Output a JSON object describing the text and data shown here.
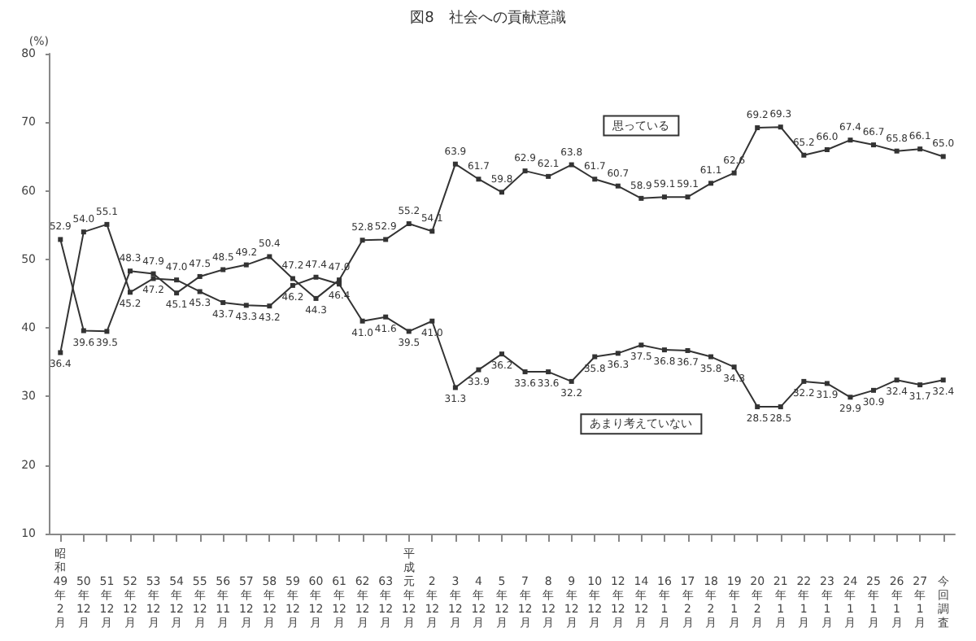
{
  "chart_data": {
    "type": "line",
    "title": "図8　社会への貢献意識",
    "ylabel": "(%)",
    "categories": [
      "昭和49年2月",
      "50年12月",
      "51年12月",
      "52年12月",
      "53年12月",
      "54年12月",
      "55年12月",
      "56年11月",
      "57年12月",
      "58年12月",
      "59年12月",
      "60年12月",
      "61年12月",
      "62年12月",
      "63年12月",
      "平成元年12月",
      "2年12月",
      "3年12月",
      "4年12月",
      "5年12月",
      "7年12月",
      "8年12月",
      "9年12月",
      "10年12月",
      "12年12月",
      "14年12月",
      "16年1月",
      "17年2月",
      "18年2月",
      "19年1月",
      "20年2月",
      "21年1月",
      "22年1月",
      "23年1月",
      "24年1月",
      "25年1月",
      "26年1月",
      "27年1月",
      "今回調査"
    ],
    "series": [
      {
        "name": "思っている",
        "color": "#333333",
        "values": [
          52.9,
          39.6,
          39.5,
          48.3,
          47.9,
          45.1,
          47.5,
          48.5,
          49.2,
          50.4,
          47.2,
          44.3,
          47.0,
          52.8,
          52.9,
          55.2,
          54.1,
          63.9,
          61.7,
          59.8,
          62.9,
          62.1,
          63.8,
          61.7,
          60.7,
          58.9,
          59.1,
          59.1,
          61.1,
          62.6,
          69.2,
          69.3,
          65.2,
          66.0,
          67.4,
          66.7,
          65.8,
          66.1,
          65.0
        ],
        "value_labels": [
          "52.9",
          "39.6",
          "39.5",
          "48.3",
          "47.9",
          "45.1",
          "47.5",
          "48.5",
          "49.2",
          "50.4",
          "47.2",
          "44.3",
          "47.0",
          "52.8",
          "52.9",
          "55.2",
          "54.1",
          "63.9",
          "61.7",
          "59.8",
          "62.9",
          "62.1",
          "63.8",
          "61.7",
          "60.7",
          "58.9",
          "59.1",
          "59.1",
          "61.1",
          "62.6",
          "69.2",
          "69.3",
          "65.2",
          "66.0",
          "67.4",
          "66.7",
          "65.8",
          "66.1",
          "65.0"
        ]
      },
      {
        "name": "あまり考えていない",
        "color": "#333333",
        "values": [
          36.4,
          54.0,
          55.1,
          45.2,
          47.2,
          47.0,
          45.3,
          43.7,
          43.3,
          43.2,
          46.2,
          47.4,
          46.4,
          41.0,
          41.6,
          39.5,
          41.0,
          31.3,
          33.9,
          36.2,
          33.6,
          33.6,
          32.2,
          35.8,
          36.3,
          37.5,
          36.8,
          36.7,
          35.8,
          34.3,
          28.5,
          28.5,
          32.2,
          31.9,
          29.9,
          30.9,
          32.4,
          31.7,
          32.4
        ],
        "value_labels": [
          "36.4",
          "54.0",
          "55.1",
          "45.2",
          "47.2",
          "47.0",
          "45.3",
          "43.7",
          "43.3",
          "43.2",
          "46.2",
          "47.4",
          "46.4",
          "41.0",
          "41.6",
          "39.5",
          "41.0",
          "31.3",
          "33.9",
          "36.2",
          "33.6",
          "33.6",
          "32.2",
          "35.8",
          "36.3",
          "37.5",
          "36.8",
          "36.7",
          "35.8",
          "34.3",
          "28.5",
          "28.5",
          "32.2",
          "31.9",
          "29.9",
          "30.9",
          "32.4",
          "31.7",
          "32.4"
        ]
      }
    ],
    "ylim": [
      10,
      80
    ],
    "yticks": [
      10,
      20,
      30,
      40,
      50,
      60,
      70,
      80
    ],
    "grid": false,
    "legend": false,
    "marker": "square",
    "line_style": "solid"
  }
}
